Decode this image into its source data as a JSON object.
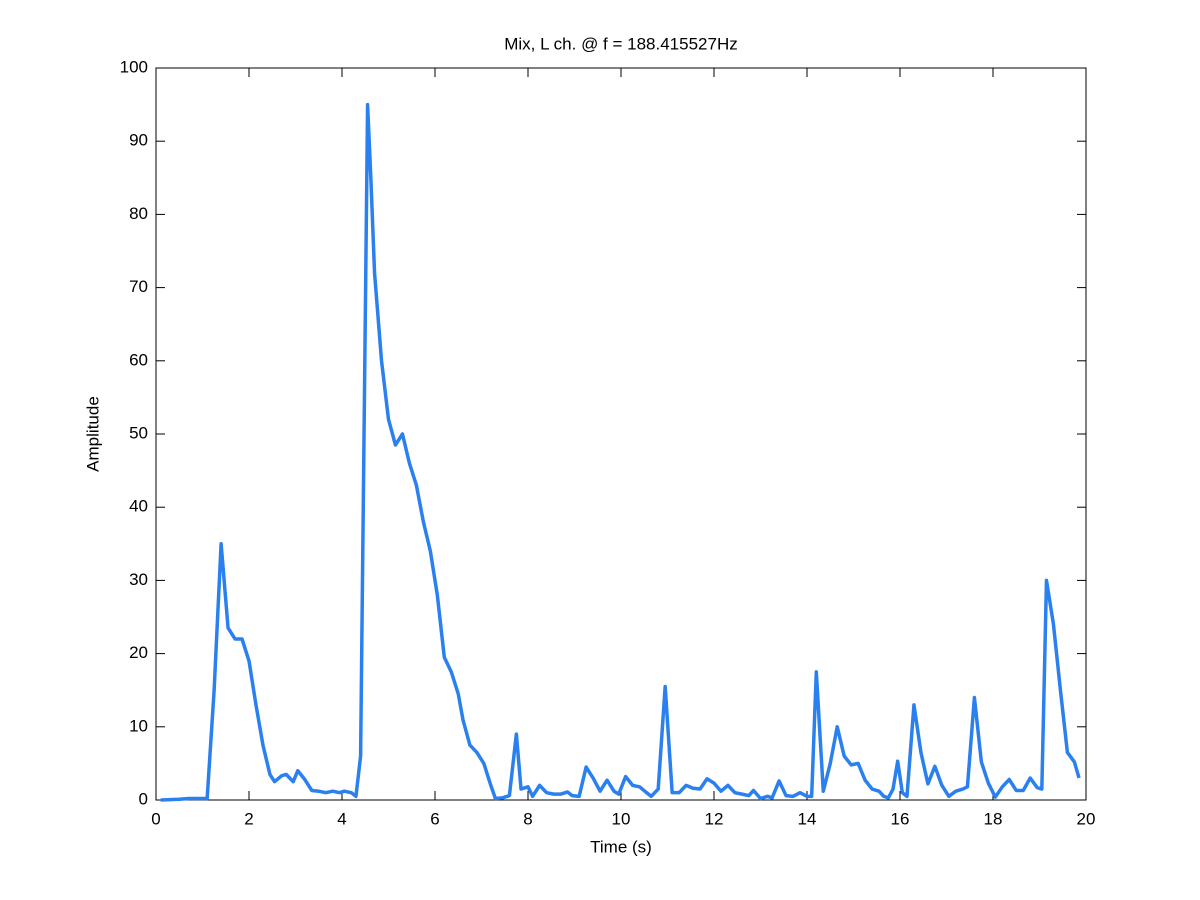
{
  "chart_data": {
    "type": "line",
    "title": "Mix, L ch. @ f = 188.415527Hz",
    "x_label": "Time (s)",
    "y_label": "Amplitude",
    "x": [
      0.1,
      0.5,
      0.7,
      1.1,
      1.25,
      1.4,
      1.55,
      1.7,
      1.85,
      2.0,
      2.15,
      2.3,
      2.45,
      2.55,
      2.7,
      2.8,
      2.95,
      3.05,
      3.2,
      3.35,
      3.5,
      3.65,
      3.8,
      3.95,
      4.05,
      4.2,
      4.3,
      4.4,
      4.55,
      4.62,
      4.7,
      4.85,
      5.0,
      5.15,
      5.3,
      5.45,
      5.6,
      5.75,
      5.9,
      6.05,
      6.2,
      6.35,
      6.5,
      6.6,
      6.75,
      6.9,
      7.05,
      7.2,
      7.3,
      7.45,
      7.6,
      7.75,
      7.85,
      8.0,
      8.1,
      8.25,
      8.4,
      8.55,
      8.7,
      8.85,
      8.95,
      9.1,
      9.25,
      9.4,
      9.55,
      9.7,
      9.85,
      9.95,
      10.1,
      10.25,
      10.4,
      10.55,
      10.65,
      10.8,
      10.95,
      11.1,
      11.25,
      11.4,
      11.55,
      11.7,
      11.85,
      12.0,
      12.15,
      12.3,
      12.45,
      12.6,
      12.75,
      12.85,
      13.0,
      13.15,
      13.25,
      13.4,
      13.55,
      13.7,
      13.85,
      14.0,
      14.1,
      14.2,
      14.35,
      14.5,
      14.65,
      14.8,
      14.95,
      15.1,
      15.25,
      15.4,
      15.55,
      15.65,
      15.75,
      15.85,
      15.95,
      16.05,
      16.15,
      16.3,
      16.45,
      16.6,
      16.75,
      16.9,
      17.05,
      17.2,
      17.35,
      17.45,
      17.6,
      17.75,
      17.9,
      18.05,
      18.2,
      18.35,
      18.5,
      18.65,
      18.8,
      18.95,
      19.05,
      19.15,
      19.3,
      19.45,
      19.6,
      19.75,
      19.85
    ],
    "series": [
      {
        "color": "#2b80f0",
        "values": [
          0,
          0.1,
          0.2,
          0.2,
          15,
          35,
          23.5,
          22,
          22,
          19,
          13,
          7.5,
          3.5,
          2.5,
          3.3,
          3.5,
          2.5,
          4,
          2.8,
          1.3,
          1.2,
          1,
          1.2,
          1,
          1.2,
          1,
          0.5,
          6,
          95,
          85,
          72,
          60,
          52,
          48.5,
          50,
          46,
          43,
          38,
          34,
          28,
          19.5,
          17.5,
          14.5,
          11,
          7.5,
          6.5,
          5,
          2,
          0.2,
          0.3,
          0.6,
          9,
          1.5,
          1.8,
          0.5,
          2,
          1,
          0.8,
          0.8,
          1.1,
          0.6,
          0.5,
          4.5,
          3,
          1.2,
          2.7,
          1.2,
          0.8,
          3.2,
          2,
          1.8,
          1,
          0.5,
          1.5,
          15.5,
          1,
          1,
          2,
          1.6,
          1.5,
          2.9,
          2.3,
          1.2,
          2,
          1,
          0.8,
          0.6,
          1.3,
          0.2,
          0.5,
          0.3,
          2.6,
          0.6,
          0.5,
          1,
          0.5,
          0.5,
          17.5,
          1.2,
          5,
          10,
          6,
          4.8,
          5,
          2.7,
          1.5,
          1.2,
          0.5,
          0.3,
          1.5,
          5.3,
          1,
          0.5,
          13,
          6.5,
          2.2,
          4.6,
          2,
          0.5,
          1.2,
          1.5,
          1.8,
          14,
          5.2,
          2.3,
          0.4,
          1.8,
          2.8,
          1.3,
          1.3,
          3,
          1.7,
          1.5,
          30,
          24,
          15,
          6.5,
          5.2,
          3
        ]
      }
    ],
    "xlim": [
      0,
      20
    ],
    "xticks": [
      0,
      2,
      4,
      6,
      8,
      10,
      12,
      14,
      16,
      18,
      20
    ],
    "ylim": [
      0,
      100
    ],
    "yticks": [
      0,
      10,
      20,
      30,
      40,
      50,
      60,
      70,
      80,
      90,
      100
    ],
    "grid": false
  }
}
